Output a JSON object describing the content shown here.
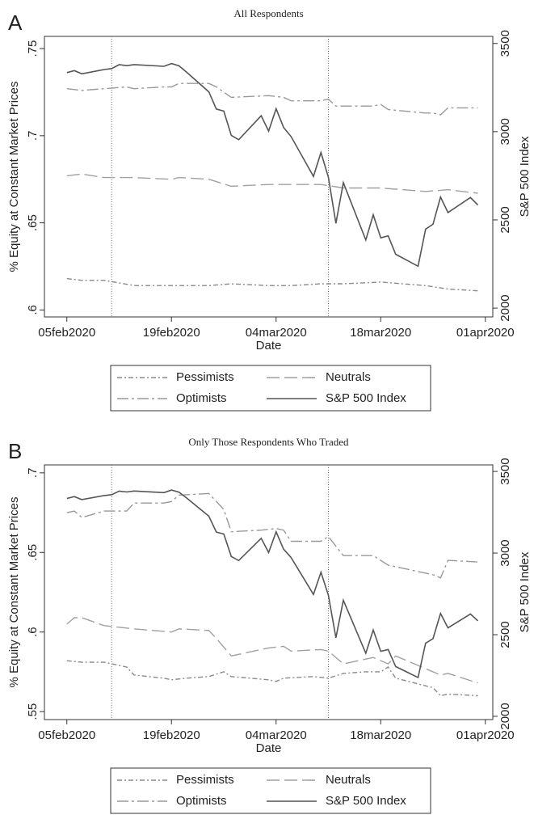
{
  "chart_data": [
    {
      "type": "line",
      "panel_label": "A",
      "title": "All Respondents",
      "x_label": "Date",
      "y_label": "% Equity at Constant Market Prices",
      "y2_label": "S&P 500 Index",
      "xlim": [
        "2020-02-02",
        "2020-04-02"
      ],
      "xticks": [
        {
          "value": "2020-02-05",
          "label": "05feb2020"
        },
        {
          "value": "2020-02-19",
          "label": "19feb2020"
        },
        {
          "value": "2020-03-04",
          "label": "04mar2020"
        },
        {
          "value": "2020-03-18",
          "label": "18mar2020"
        },
        {
          "value": "2020-04-01",
          "label": "01apr2020"
        }
      ],
      "ylim": [
        0.596,
        0.757
      ],
      "yticks": [
        {
          "value": 0.6,
          "label": ".6"
        },
        {
          "value": 0.65,
          "label": ".65"
        },
        {
          "value": 0.7,
          "label": ".7"
        },
        {
          "value": 0.75,
          "label": ".75"
        }
      ],
      "y2lim": [
        1950,
        3540
      ],
      "y2ticks": [
        2000,
        2500,
        3000,
        3500
      ],
      "reference_dates": [
        "2020-02-11",
        "2020-03-11"
      ],
      "series": [
        {
          "name": "Pessimists",
          "color": "#8a8a8a",
          "dash": "6,3,2,3",
          "x": [
            "2020-02-05",
            "2020-02-07",
            "2020-02-10",
            "2020-02-14",
            "2020-02-19",
            "2020-02-20",
            "2020-02-24",
            "2020-02-27",
            "2020-03-03",
            "2020-03-06",
            "2020-03-10",
            "2020-03-13",
            "2020-03-18",
            "2020-03-24",
            "2020-03-27",
            "2020-03-31"
          ],
          "values": [
            0.618,
            0.617,
            0.617,
            0.614,
            0.614,
            0.614,
            0.614,
            0.615,
            0.614,
            0.614,
            0.615,
            0.615,
            0.616,
            0.614,
            0.612,
            0.611
          ]
        },
        {
          "name": "Neutrals",
          "color": "#a0a0a0",
          "dash": "16,6",
          "x": [
            "2020-02-05",
            "2020-02-07",
            "2020-02-10",
            "2020-02-14",
            "2020-02-19",
            "2020-02-20",
            "2020-02-24",
            "2020-02-27",
            "2020-03-03",
            "2020-03-06",
            "2020-03-10",
            "2020-03-13",
            "2020-03-18",
            "2020-03-24",
            "2020-03-27",
            "2020-03-31"
          ],
          "values": [
            0.677,
            0.678,
            0.676,
            0.676,
            0.675,
            0.676,
            0.675,
            0.671,
            0.672,
            0.672,
            0.672,
            0.67,
            0.67,
            0.668,
            0.669,
            0.667
          ]
        },
        {
          "name": "Optimists",
          "color": "#999999",
          "dash": "14,4,3,4",
          "x": [
            "2020-02-05",
            "2020-02-07",
            "2020-02-10",
            "2020-02-13",
            "2020-02-14",
            "2020-02-18",
            "2020-02-19",
            "2020-02-20",
            "2020-02-24",
            "2020-02-25",
            "2020-02-27",
            "2020-03-03",
            "2020-03-05",
            "2020-03-06",
            "2020-03-10",
            "2020-03-11",
            "2020-03-12",
            "2020-03-17",
            "2020-03-18",
            "2020-03-19",
            "2020-03-24",
            "2020-03-25",
            "2020-03-26",
            "2020-03-27",
            "2020-03-31"
          ],
          "values": [
            0.727,
            0.726,
            0.727,
            0.728,
            0.727,
            0.728,
            0.728,
            0.73,
            0.73,
            0.728,
            0.722,
            0.723,
            0.722,
            0.72,
            0.72,
            0.721,
            0.717,
            0.717,
            0.718,
            0.715,
            0.713,
            0.713,
            0.712,
            0.716,
            0.716
          ]
        },
        {
          "name": "S&P 500 Index",
          "color": "#555555",
          "dash": "none",
          "axis": "y2",
          "x": [
            "2020-02-05",
            "2020-02-06",
            "2020-02-07",
            "2020-02-10",
            "2020-02-11",
            "2020-02-12",
            "2020-02-13",
            "2020-02-14",
            "2020-02-18",
            "2020-02-19",
            "2020-02-20",
            "2020-02-21",
            "2020-02-24",
            "2020-02-25",
            "2020-02-26",
            "2020-02-27",
            "2020-02-28",
            "2020-03-02",
            "2020-03-03",
            "2020-03-04",
            "2020-03-05",
            "2020-03-06",
            "2020-03-09",
            "2020-03-10",
            "2020-03-11",
            "2020-03-12",
            "2020-03-13",
            "2020-03-16",
            "2020-03-17",
            "2020-03-18",
            "2020-03-19",
            "2020-03-20",
            "2020-03-23",
            "2020-03-24",
            "2020-03-25",
            "2020-03-26",
            "2020-03-27",
            "2020-03-30",
            "2020-03-31"
          ],
          "values": [
            3334.69,
            3345.78,
            3327.71,
            3352.09,
            3357.75,
            3379.45,
            3373.94,
            3380.16,
            3370.29,
            3386.15,
            3373.23,
            3337.75,
            3225.89,
            3128.21,
            3116.39,
            2978.76,
            2954.22,
            3090.23,
            3003.37,
            3130.12,
            3023.94,
            2972.37,
            2746.56,
            2882.23,
            2741.38,
            2480.64,
            2711.02,
            2386.13,
            2529.19,
            2398.1,
            2409.39,
            2304.92,
            2237.4,
            2447.33,
            2475.56,
            2630.07,
            2541.47,
            2626.65,
            2584.59
          ]
        }
      ]
    },
    {
      "type": "line",
      "panel_label": "B",
      "title": "Only Those Respondents Who Traded",
      "x_label": "Date",
      "y_label": "% Equity at Constant Market Prices",
      "y2_label": "S&P 500 Index",
      "xlim": [
        "2020-02-02",
        "2020-04-02"
      ],
      "xticks": [
        {
          "value": "2020-02-05",
          "label": "05feb2020"
        },
        {
          "value": "2020-02-19",
          "label": "19feb2020"
        },
        {
          "value": "2020-03-04",
          "label": "04mar2020"
        },
        {
          "value": "2020-03-18",
          "label": "18mar2020"
        },
        {
          "value": "2020-04-01",
          "label": "01apr2020"
        }
      ],
      "ylim": [
        0.545,
        0.705
      ],
      "yticks": [
        {
          "value": 0.55,
          "label": ".55"
        },
        {
          "value": 0.6,
          "label": ".6"
        },
        {
          "value": 0.65,
          "label": ".65"
        },
        {
          "value": 0.7,
          "label": ".7"
        }
      ],
      "y2lim": [
        1980,
        3540
      ],
      "y2ticks": [
        2000,
        2500,
        3000,
        3500
      ],
      "reference_dates": [
        "2020-02-11",
        "2020-03-11"
      ],
      "series": [
        {
          "name": "Pessimists",
          "color": "#8a8a8a",
          "dash": "6,3,2,3",
          "x": [
            "2020-02-05",
            "2020-02-07",
            "2020-02-10",
            "2020-02-13",
            "2020-02-14",
            "2020-02-18",
            "2020-02-19",
            "2020-02-21",
            "2020-02-24",
            "2020-02-26",
            "2020-02-27",
            "2020-03-03",
            "2020-03-04",
            "2020-03-05",
            "2020-03-09",
            "2020-03-11",
            "2020-03-13",
            "2020-03-16",
            "2020-03-18",
            "2020-03-19",
            "2020-03-20",
            "2020-03-25",
            "2020-03-26",
            "2020-03-27",
            "2020-03-31"
          ],
          "values": [
            0.582,
            0.581,
            0.581,
            0.578,
            0.573,
            0.571,
            0.57,
            0.571,
            0.572,
            0.575,
            0.572,
            0.57,
            0.569,
            0.571,
            0.572,
            0.571,
            0.574,
            0.575,
            0.575,
            0.578,
            0.571,
            0.565,
            0.56,
            0.561,
            0.56
          ]
        },
        {
          "name": "Neutrals",
          "color": "#a0a0a0",
          "dash": "16,6",
          "x": [
            "2020-02-05",
            "2020-02-06",
            "2020-02-07",
            "2020-02-10",
            "2020-02-14",
            "2020-02-19",
            "2020-02-20",
            "2020-02-24",
            "2020-02-25",
            "2020-02-27",
            "2020-03-03",
            "2020-03-05",
            "2020-03-06",
            "2020-03-10",
            "2020-03-11",
            "2020-03-13",
            "2020-03-17",
            "2020-03-19",
            "2020-03-20",
            "2020-03-24",
            "2020-03-26",
            "2020-03-27",
            "2020-03-31"
          ],
          "values": [
            0.605,
            0.609,
            0.609,
            0.604,
            0.602,
            0.6,
            0.602,
            0.601,
            0.596,
            0.585,
            0.59,
            0.591,
            0.588,
            0.589,
            0.588,
            0.58,
            0.584,
            0.58,
            0.585,
            0.577,
            0.573,
            0.574,
            0.568
          ]
        },
        {
          "name": "Optimists",
          "color": "#999999",
          "dash": "14,4,3,4",
          "x": [
            "2020-02-05",
            "2020-02-06",
            "2020-02-07",
            "2020-02-10",
            "2020-02-13",
            "2020-02-14",
            "2020-02-18",
            "2020-02-19",
            "2020-02-20",
            "2020-02-24",
            "2020-02-26",
            "2020-02-27",
            "2020-03-02",
            "2020-03-04",
            "2020-03-05",
            "2020-03-06",
            "2020-03-10",
            "2020-03-11",
            "2020-03-13",
            "2020-03-17",
            "2020-03-19",
            "2020-03-23",
            "2020-03-25",
            "2020-03-26",
            "2020-03-27",
            "2020-03-31"
          ],
          "values": [
            0.675,
            0.676,
            0.672,
            0.676,
            0.676,
            0.681,
            0.681,
            0.682,
            0.686,
            0.687,
            0.677,
            0.663,
            0.664,
            0.665,
            0.664,
            0.657,
            0.657,
            0.66,
            0.648,
            0.648,
            0.642,
            0.638,
            0.636,
            0.634,
            0.645,
            0.644
          ]
        },
        {
          "name": "S&P 500 Index",
          "color": "#555555",
          "dash": "none",
          "axis": "y2",
          "x": [
            "2020-02-05",
            "2020-02-06",
            "2020-02-07",
            "2020-02-10",
            "2020-02-11",
            "2020-02-12",
            "2020-02-13",
            "2020-02-14",
            "2020-02-18",
            "2020-02-19",
            "2020-02-20",
            "2020-02-21",
            "2020-02-24",
            "2020-02-25",
            "2020-02-26",
            "2020-02-27",
            "2020-02-28",
            "2020-03-02",
            "2020-03-03",
            "2020-03-04",
            "2020-03-05",
            "2020-03-06",
            "2020-03-09",
            "2020-03-10",
            "2020-03-11",
            "2020-03-12",
            "2020-03-13",
            "2020-03-16",
            "2020-03-17",
            "2020-03-18",
            "2020-03-19",
            "2020-03-20",
            "2020-03-23",
            "2020-03-24",
            "2020-03-25",
            "2020-03-26",
            "2020-03-27",
            "2020-03-30",
            "2020-03-31"
          ],
          "values": [
            3334.69,
            3345.78,
            3327.71,
            3352.09,
            3357.75,
            3379.45,
            3373.94,
            3380.16,
            3370.29,
            3386.15,
            3373.23,
            3337.75,
            3225.89,
            3128.21,
            3116.39,
            2978.76,
            2954.22,
            3090.23,
            3003.37,
            3130.12,
            3023.94,
            2972.37,
            2746.56,
            2882.23,
            2741.38,
            2480.64,
            2711.02,
            2386.13,
            2529.19,
            2398.1,
            2409.39,
            2304.92,
            2237.4,
            2447.33,
            2475.56,
            2630.07,
            2541.47,
            2626.65,
            2584.59
          ]
        }
      ]
    }
  ]
}
